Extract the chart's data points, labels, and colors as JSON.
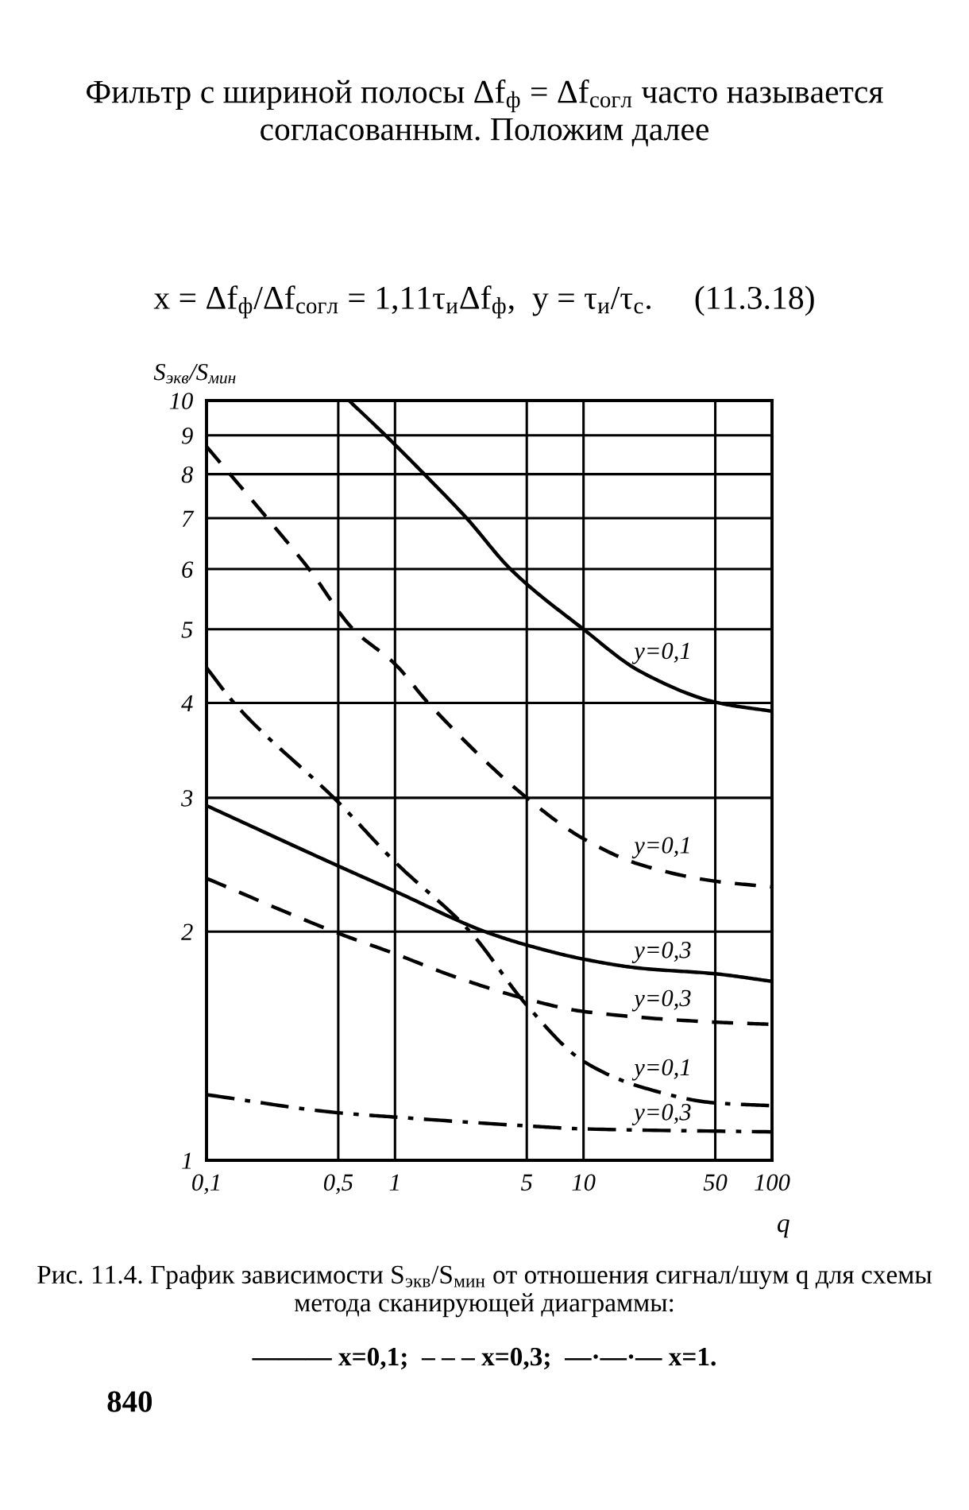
{
  "chart_data": {
    "type": "line",
    "title": "Фильтр с шириной полосы Δf$_{ф}$ = Δf$_{согл}$ часто называется согласованным. Положим далее",
    "subtitle": "x = Δf$_{ф}$/Δf$_{согл}$ = 1,11τ$_{и}$Δf$_{ф}$,  y = τ$_{и}$/τ$_{с}$.     (11.3.18)",
    "xlabel": "q",
    "ylabel": "S$_{экв}$/S$_{мин}$",
    "log": "xy",
    "grid": true,
    "xlim": [
      0.1,
      100
    ],
    "xticks": [
      {
        "value": 0.1,
        "label": "0,1"
      },
      {
        "value": 0.5,
        "label": "0,5"
      },
      1,
      5,
      10,
      50,
      100
    ],
    "ylim": [
      1,
      10
    ],
    "yticks": [
      1,
      2,
      3,
      4,
      5,
      6,
      7,
      8,
      9,
      10
    ],
    "series": [
      {
        "name": "y=0,1",
        "color": "#000000",
        "line_style": "solid",
        "x": [
          0.57,
          0.89,
          1.43,
          2.4,
          4.1,
          10,
          20,
          52,
          100
        ],
        "values": [
          10,
          9,
          8,
          7,
          6,
          5,
          4.4,
          4,
          3.9
        ]
      },
      {
        "name": "y=0,1",
        "color": "#000000",
        "line_style": "dashed",
        "x": [
          0.1,
          0.21,
          0.35,
          0.6,
          1,
          1.5,
          5,
          10,
          20,
          50,
          100
        ],
        "values": [
          8.7,
          7,
          6,
          5,
          4.5,
          4,
          3,
          2.65,
          2.45,
          2.33,
          2.29
        ]
      },
      {
        "name": "y=0,1",
        "color": "#000000",
        "line_style": "dashdot",
        "x": [
          0.1,
          0.14,
          0.5,
          1,
          2.5,
          5,
          10,
          20,
          50,
          100
        ],
        "values": [
          4.45,
          4,
          2.96,
          2.47,
          2,
          1.6,
          1.35,
          1.25,
          1.19,
          1.18
        ]
      },
      {
        "name": "y=0,3",
        "color": "#000000",
        "line_style": "solid",
        "x": [
          0.1,
          0.5,
          1,
          3,
          5,
          10,
          20,
          50,
          100
        ],
        "values": [
          2.93,
          2.44,
          2.26,
          2,
          1.92,
          1.84,
          1.79,
          1.76,
          1.72
        ]
      },
      {
        "name": "y=0,3",
        "color": "#000000",
        "line_style": "dashed",
        "x": [
          0.1,
          0.5,
          1,
          2,
          5,
          10,
          50,
          100
        ],
        "values": [
          2.35,
          1.99,
          1.87,
          1.75,
          1.63,
          1.57,
          1.52,
          1.51
        ]
      },
      {
        "name": "y=0,3",
        "color": "#000000",
        "line_style": "dashdot",
        "x": [
          0.1,
          0.5,
          1,
          5,
          10,
          100
        ],
        "values": [
          1.22,
          1.155,
          1.14,
          1.11,
          1.1,
          1.09
        ]
      }
    ],
    "annotations": [
      "Рис. 11.4. График зависимости S$_{экв}$/S$_{мин}$ от отношения сигнал/шум q для схемы метода сканирующей диаграммы:",
      "——— x=0,1;  – – – x=0,3;  —·—·— x=1.",
      "840"
    ]
  }
}
